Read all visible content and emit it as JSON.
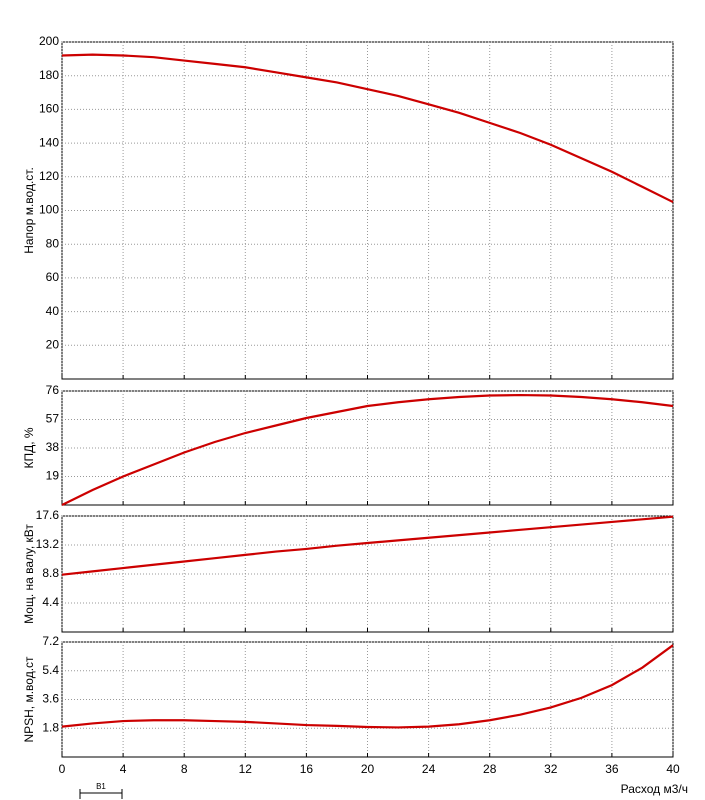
{
  "chart_data": [
    {
      "type": "line",
      "y_label": "Напор м.вод.ст.",
      "xlim": [
        0,
        40
      ],
      "xticks": [
        0,
        4,
        8,
        12,
        16,
        20,
        24,
        28,
        32,
        36,
        40
      ],
      "ylim": [
        0,
        200
      ],
      "yticks": [
        20,
        40,
        60,
        80,
        100,
        120,
        140,
        160,
        180,
        200
      ],
      "grid": true,
      "x": [
        0,
        2,
        4,
        6,
        8,
        10,
        12,
        14,
        16,
        18,
        20,
        22,
        24,
        26,
        28,
        30,
        32,
        34,
        36,
        38,
        40
      ],
      "series": [
        {
          "color": "#cc0000",
          "values": [
            192,
            192.5,
            192,
            191,
            189,
            187,
            185,
            182,
            179,
            176,
            172,
            168,
            163,
            158,
            152,
            146,
            139,
            131,
            123,
            114,
            105
          ]
        }
      ]
    },
    {
      "type": "line",
      "y_label": "КПД, %",
      "xlim": [
        0,
        40
      ],
      "xticks": [
        0,
        4,
        8,
        12,
        16,
        20,
        24,
        28,
        32,
        36,
        40
      ],
      "ylim": [
        0,
        76
      ],
      "yticks": [
        19,
        38,
        57,
        76
      ],
      "grid": true,
      "x": [
        0,
        2,
        4,
        6,
        8,
        10,
        12,
        14,
        16,
        18,
        20,
        22,
        24,
        26,
        28,
        30,
        32,
        34,
        36,
        38,
        40
      ],
      "series": [
        {
          "color": "#cc0000",
          "values": [
            0,
            10,
            19,
            27,
            35,
            42,
            48,
            53,
            58,
            62,
            66,
            68.5,
            70.5,
            72,
            73,
            73.3,
            73,
            72,
            70.5,
            68.5,
            66
          ]
        }
      ]
    },
    {
      "type": "line",
      "y_label": "Мощ. на валу, кВт",
      "xlim": [
        0,
        40
      ],
      "xticks": [
        0,
        4,
        8,
        12,
        16,
        20,
        24,
        28,
        32,
        36,
        40
      ],
      "ylim": [
        0,
        17.6
      ],
      "yticks": [
        4.4,
        8.8,
        13.2,
        17.6
      ],
      "grid": true,
      "x": [
        0,
        2,
        4,
        6,
        8,
        10,
        12,
        14,
        16,
        18,
        20,
        22,
        24,
        26,
        28,
        30,
        32,
        34,
        36,
        38,
        40
      ],
      "series": [
        {
          "color": "#cc0000",
          "values": [
            8.7,
            9.2,
            9.7,
            10.2,
            10.7,
            11.2,
            11.7,
            12.2,
            12.6,
            13.1,
            13.5,
            13.9,
            14.3,
            14.7,
            15.1,
            15.5,
            15.9,
            16.3,
            16.7,
            17.1,
            17.5
          ]
        }
      ]
    },
    {
      "type": "line",
      "y_label": "NPSH, м.вод.ст",
      "x_label": "Расход м3/ч",
      "annotation": "B1",
      "xlim": [
        0,
        40
      ],
      "xticks": [
        0,
        4,
        8,
        12,
        16,
        20,
        24,
        28,
        32,
        36,
        40
      ],
      "ylim": [
        0,
        7.2
      ],
      "yticks": [
        1.8,
        3.6,
        5.4,
        7.2
      ],
      "grid": true,
      "x": [
        0,
        2,
        4,
        6,
        8,
        10,
        12,
        14,
        16,
        18,
        20,
        22,
        24,
        26,
        28,
        30,
        32,
        34,
        36,
        38,
        40
      ],
      "series": [
        {
          "color": "#cc0000",
          "values": [
            1.9,
            2.1,
            2.25,
            2.3,
            2.3,
            2.25,
            2.2,
            2.1,
            2.0,
            1.95,
            1.88,
            1.85,
            1.9,
            2.05,
            2.3,
            2.65,
            3.1,
            3.7,
            4.5,
            5.6,
            7.0
          ]
        }
      ]
    }
  ]
}
